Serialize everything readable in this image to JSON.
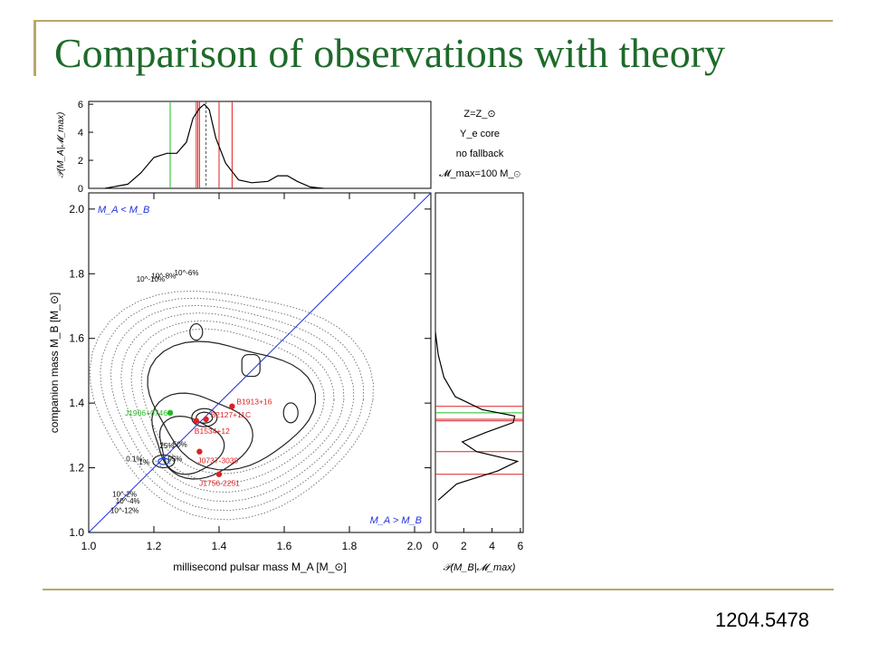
{
  "slide": {
    "title": "Comparison of observations with theory",
    "reference": "1204.5478"
  },
  "chart_data": {
    "type": "scatter",
    "xlabel": "millisecond pulsar mass M_A [M_⊙]",
    "ylabel": "companion mass M_B [M_⊙]",
    "xlim": [
      1.0,
      2.05
    ],
    "ylim": [
      1.0,
      2.05
    ],
    "x_ticks": [
      "1.0",
      "1.2",
      "1.4",
      "1.6",
      "1.8",
      "2.0"
    ],
    "y_ticks": [
      "1.0",
      "1.2",
      "1.4",
      "1.6",
      "1.8",
      "2.0"
    ],
    "region_labels": {
      "upper_left": "M_A < M_B",
      "lower_right": "M_A > M_B"
    },
    "legend_text": [
      "Z=Z_⊙",
      "Y_e core",
      "no fallback",
      "𝓜_max=100 M_⊙"
    ],
    "contour_levels": [
      "95%",
      "50%",
      "25%",
      "1%",
      "0.1%",
      "10^-2%",
      "10^-4%",
      "10^-6%",
      "10^-8%",
      "10^-10%",
      "10^-12%"
    ],
    "points": [
      {
        "label": "J1906+0746",
        "x": 1.25,
        "y": 1.37,
        "color": "#22bb22"
      },
      {
        "label": "B1913+16",
        "x": 1.44,
        "y": 1.39,
        "color": "#dd2222"
      },
      {
        "label": "B2127+11C",
        "x": 1.36,
        "y": 1.35,
        "color": "#dd2222"
      },
      {
        "label": "B1534+12",
        "x": 1.33,
        "y": 1.345,
        "color": "#dd2222"
      },
      {
        "label": "J0737-3039",
        "x": 1.34,
        "y": 1.25,
        "color": "#dd2222"
      },
      {
        "label": "J1756-2251",
        "x": 1.4,
        "y": 1.18,
        "color": "#dd2222"
      }
    ],
    "top_panel": {
      "ylabel": "𝒫(M_A|𝓜_max)",
      "y_ticks": [
        "0",
        "2",
        "4",
        "6"
      ],
      "ylim": [
        0,
        6.2
      ],
      "distribution_x": [
        1.05,
        1.12,
        1.16,
        1.2,
        1.24,
        1.27,
        1.3,
        1.32,
        1.34,
        1.355,
        1.37,
        1.39,
        1.42,
        1.46,
        1.5,
        1.55,
        1.58,
        1.61,
        1.64,
        1.68,
        1.72
      ],
      "distribution_y": [
        0,
        0.3,
        1.1,
        2.2,
        2.5,
        2.5,
        3.3,
        5.0,
        5.7,
        6.0,
        5.6,
        3.6,
        1.8,
        0.6,
        0.4,
        0.5,
        0.9,
        0.9,
        0.5,
        0.1,
        0
      ]
    },
    "right_panel": {
      "xlabel": "𝒫(M_B|𝓜_max)",
      "x_ticks": [
        "0",
        "2",
        "4",
        "6"
      ],
      "xlim": [
        0,
        6.2
      ],
      "distribution_y": [
        1.1,
        1.15,
        1.19,
        1.22,
        1.25,
        1.28,
        1.31,
        1.34,
        1.36,
        1.38,
        1.42,
        1.48,
        1.55,
        1.62
      ],
      "distribution_x": [
        0.2,
        1.5,
        4.4,
        5.8,
        2.9,
        1.9,
        3.6,
        5.5,
        5.6,
        3.3,
        1.4,
        0.6,
        0.2,
        0.0
      ]
    }
  }
}
